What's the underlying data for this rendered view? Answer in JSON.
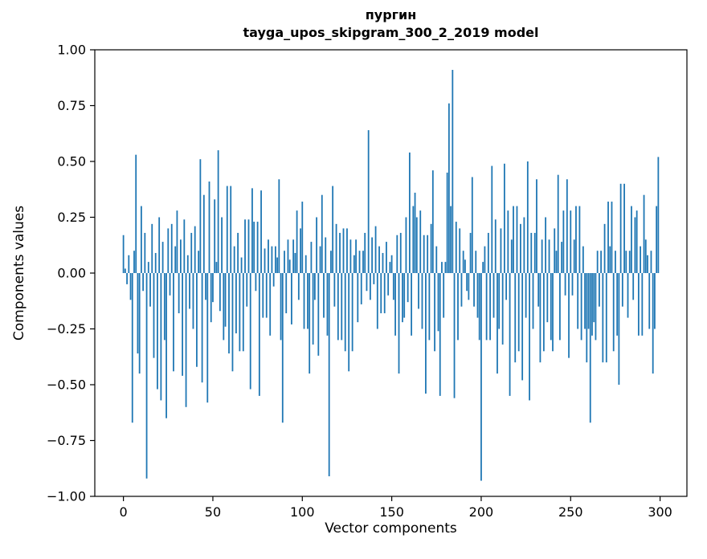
{
  "chart_data": {
    "type": "bar",
    "title": "пургин",
    "subtitle": "tayga_upos_skipgram_300_2_2019 model",
    "xlabel": "Vector components",
    "ylabel": "Components values",
    "xlim": [
      -16,
      315
    ],
    "ylim": [
      -1.0,
      1.0
    ],
    "x_ticks": [
      0,
      50,
      100,
      150,
      200,
      250,
      300
    ],
    "y_ticks": [
      1.0,
      0.75,
      0.5,
      0.25,
      0.0,
      -0.25,
      -0.5,
      -0.75,
      -1.0
    ],
    "grid": false,
    "legend": "none",
    "bar_color": "#1f77b4",
    "values": [
      0.17,
      0.02,
      -0.05,
      0.08,
      -0.12,
      -0.67,
      0.1,
      0.53,
      -0.36,
      -0.45,
      0.3,
      -0.08,
      0.18,
      -0.92,
      0.05,
      -0.15,
      0.22,
      -0.38,
      0.09,
      -0.52,
      0.25,
      -0.57,
      0.14,
      -0.3,
      -0.65,
      0.2,
      -0.1,
      0.22,
      -0.44,
      0.12,
      0.28,
      -0.18,
      0.15,
      -0.46,
      0.24,
      -0.6,
      0.08,
      -0.16,
      0.18,
      -0.25,
      0.21,
      -0.42,
      0.1,
      0.51,
      -0.49,
      0.35,
      -0.12,
      -0.58,
      0.41,
      -0.22,
      -0.13,
      0.33,
      0.05,
      0.55,
      -0.17,
      0.25,
      -0.3,
      -0.24,
      0.39,
      -0.36,
      0.39,
      -0.44,
      0.12,
      -0.27,
      0.18,
      -0.35,
      0.07,
      -0.35,
      0.24,
      -0.15,
      0.24,
      -0.52,
      0.38,
      0.23,
      -0.08,
      0.23,
      -0.55,
      0.37,
      -0.2,
      0.11,
      -0.2,
      0.15,
      -0.28,
      0.12,
      -0.06,
      0.12,
      0.07,
      0.42,
      -0.3,
      -0.67,
      0.1,
      -0.18,
      0.15,
      0.06,
      -0.23,
      0.15,
      0.09,
      0.28,
      -0.12,
      0.2,
      0.32,
      -0.25,
      0.08,
      -0.25,
      -0.45,
      0.14,
      -0.32,
      -0.12,
      0.25,
      -0.37,
      0.12,
      0.35,
      -0.2,
      0.16,
      -0.28,
      -0.91,
      0.1,
      0.39,
      -0.15,
      0.22,
      -0.3,
      0.18,
      -0.3,
      0.2,
      -0.35,
      0.2,
      -0.44,
      0.15,
      -0.35,
      0.08,
      0.15,
      -0.22,
      0.1,
      -0.14,
      0.1,
      0.18,
      -0.08,
      0.64,
      -0.12,
      0.16,
      -0.05,
      0.21,
      -0.25,
      0.12,
      -0.18,
      0.09,
      -0.18,
      0.14,
      -0.1,
      0.05,
      0.08,
      -0.12,
      -0.28,
      0.17,
      -0.45,
      0.18,
      -0.22,
      -0.2,
      0.25,
      -0.13,
      0.54,
      -0.28,
      0.3,
      0.36,
      0.25,
      -0.16,
      0.28,
      -0.25,
      0.17,
      -0.54,
      0.17,
      -0.3,
      0.22,
      0.46,
      -0.35,
      0.12,
      -0.26,
      -0.55,
      0.05,
      -0.2,
      0.05,
      0.45,
      0.76,
      0.3,
      0.91,
      -0.56,
      0.23,
      -0.3,
      0.2,
      -0.15,
      0.1,
      0.06,
      -0.08,
      -0.12,
      0.18,
      0.43,
      -0.15,
      0.1,
      -0.2,
      -0.3,
      -0.93,
      0.05,
      0.12,
      -0.3,
      0.18,
      -0.3,
      0.48,
      -0.2,
      0.24,
      -0.45,
      -0.25,
      0.2,
      -0.32,
      0.49,
      -0.12,
      0.28,
      -0.55,
      0.15,
      0.3,
      -0.4,
      0.3,
      -0.35,
      0.22,
      -0.48,
      0.25,
      -0.2,
      0.5,
      -0.57,
      0.18,
      -0.25,
      0.18,
      0.42,
      -0.15,
      -0.4,
      0.15,
      -0.35,
      0.25,
      -0.22,
      0.15,
      -0.3,
      -0.35,
      0.2,
      0.1,
      0.44,
      -0.3,
      0.14,
      0.28,
      -0.1,
      0.42,
      -0.38,
      0.28,
      -0.1,
      0.15,
      0.3,
      -0.25,
      0.3,
      -0.3,
      0.12,
      -0.25,
      -0.4,
      -0.25,
      -0.67,
      -0.28,
      -0.22,
      -0.3,
      0.1,
      -0.15,
      0.1,
      -0.4,
      0.22,
      -0.4,
      0.32,
      0.12,
      0.32,
      -0.35,
      0.1,
      -0.28,
      -0.5,
      0.4,
      -0.15,
      0.4,
      0.1,
      -0.2,
      0.1,
      0.3,
      -0.12,
      0.25,
      0.28,
      -0.28,
      0.12,
      -0.28,
      0.35,
      0.15,
      0.08,
      -0.25,
      0.1,
      -0.45,
      -0.25,
      0.3,
      0.52
    ]
  }
}
